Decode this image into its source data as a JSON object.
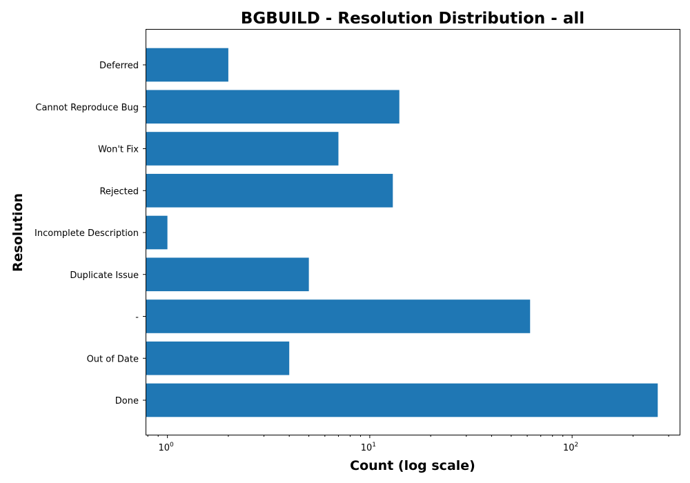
{
  "chart_data": {
    "type": "bar",
    "orientation": "horizontal",
    "title": "BGBUILD - Resolution Distribution - all",
    "xlabel": "Count (log scale)",
    "ylabel": "Resolution",
    "x_scale": "log",
    "xlim": [
      0.78,
      340
    ],
    "x_ticks": [
      {
        "value": 1,
        "base": "10",
        "exp": "0"
      },
      {
        "value": 10,
        "base": "10",
        "exp": "1"
      },
      {
        "value": 100,
        "base": "10",
        "exp": "2"
      }
    ],
    "categories": [
      "Done",
      "Out of Date",
      "-",
      "Duplicate Issue",
      "Incomplete Description",
      "Rejected",
      "Won't Fix",
      "Cannot Reproduce Bug",
      "Deferred"
    ],
    "values": [
      265,
      4,
      62,
      5,
      1,
      13,
      7,
      14,
      2
    ],
    "bar_color": "#1f77b4",
    "grid": false,
    "legend": "none"
  }
}
